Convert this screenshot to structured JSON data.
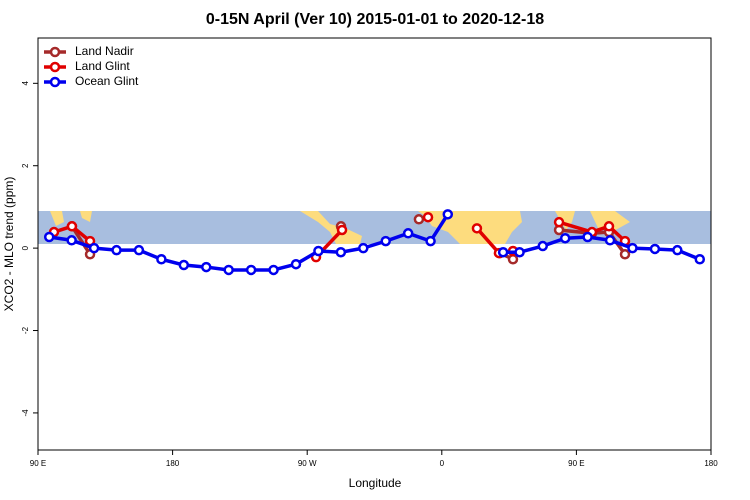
{
  "chart_data": {
    "type": "line",
    "title": "0-15N April (Ver 10)   2015-01-01 to 2020-12-18",
    "x_label": "Longitude",
    "y_label": "XCO2 - MLO trend (ppm)",
    "xlim": [
      90,
      540
    ],
    "ylim": [
      -4.9,
      5.1
    ],
    "xticks": [
      {
        "value": 90,
        "label": "90 E"
      },
      180,
      {
        "value": 270,
        "label": "90 W"
      },
      {
        "value": 360,
        "label": "0"
      },
      {
        "value": 450,
        "label": "90 E"
      },
      {
        "value": 540,
        "label": "180"
      }
    ],
    "yticks": [
      -4,
      -2,
      0,
      2,
      4
    ],
    "legend": "topleft",
    "series": [
      {
        "name": "Land Nadir",
        "color": "#a52a2a",
        "x": [
          112.7,
          124.8,
          null,
          292.6,
          null,
          344.7,
          null,
          398.9,
          407.6,
          null,
          438.4,
          460.4,
          471.8,
          482.5
        ],
        "values": [
          0.53,
          -0.15,
          null,
          0.53,
          null,
          0.7,
          null,
          -0.12,
          -0.27,
          null,
          0.44,
          0.36,
          0.39,
          -0.15
        ]
      },
      {
        "name": "Land Glint",
        "color": "#e00000",
        "x": [
          100.7,
          112.7,
          124.8,
          null,
          275.9,
          293.3,
          null,
          350.8,
          null,
          383.5,
          398.2,
          407.6,
          null,
          438.4,
          460.4,
          471.8,
          482.5
        ],
        "values": [
          0.39,
          0.53,
          0.17,
          null,
          -0.22,
          0.44,
          null,
          0.75,
          null,
          0.48,
          -0.12,
          -0.07,
          null,
          0.63,
          0.39,
          0.53,
          0.17
        ]
      },
      {
        "name": "Ocean Glint",
        "color": "#0000ee",
        "x": [
          97.5,
          112.5,
          127.5,
          142.5,
          157.5,
          172.5,
          187.5,
          202.5,
          217.5,
          232.5,
          247.5,
          262.5,
          277.5,
          292.5,
          307.5,
          322.5,
          337.5,
          352.5,
          364,
          null,
          401,
          412,
          427.5,
          442.5,
          457.5,
          472.5,
          487.5,
          502.5,
          517.5,
          532.5
        ],
        "values": [
          0.27,
          0.19,
          0,
          -0.05,
          -0.05,
          -0.27,
          -0.41,
          -0.46,
          -0.53,
          -0.53,
          -0.53,
          -0.39,
          -0.07,
          -0.1,
          0,
          0.17,
          0.36,
          0.17,
          0.82,
          null,
          -0.1,
          -0.1,
          0.05,
          0.24,
          0.27,
          0.19,
          0,
          -0.02,
          -0.05,
          -0.27
        ]
      }
    ]
  }
}
